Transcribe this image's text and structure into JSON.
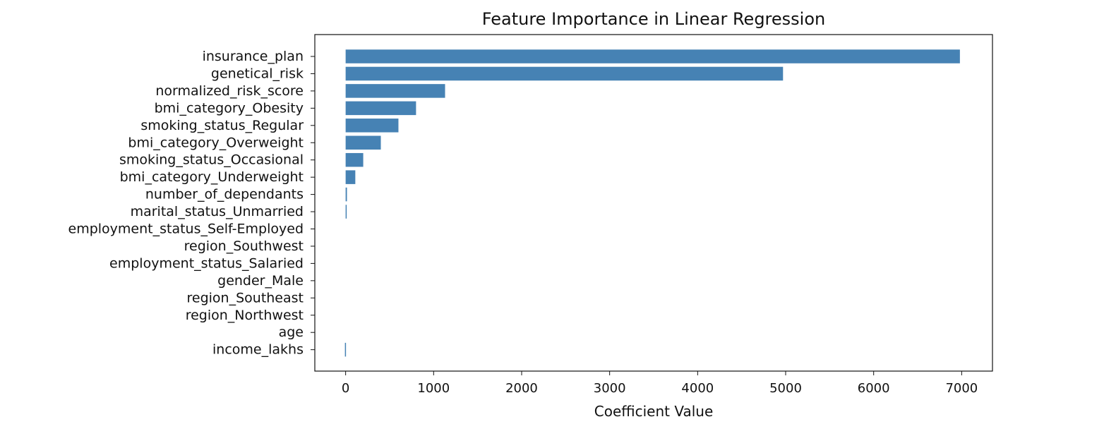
{
  "chart_data": {
    "type": "bar",
    "orientation": "horizontal",
    "title": "Feature Importance in Linear Regression",
    "xlabel": "Coefficient Value",
    "ylabel": "",
    "xlim": [
      -350,
      7350
    ],
    "xticks": [
      0,
      1000,
      2000,
      3000,
      4000,
      5000,
      6000,
      7000
    ],
    "bar_color": "#4682B4",
    "categories": [
      "insurance_plan",
      "genetical_risk",
      "normalized_risk_score",
      "bmi_category_Obesity",
      "smoking_status_Regular",
      "bmi_category_Overweight",
      "smoking_status_Occasional",
      "bmi_category_Underweight",
      "number_of_dependants",
      "marital_status_Unmarried",
      "employment_status_Self-Employed",
      "region_Southwest",
      "employment_status_Salaried",
      "gender_Male",
      "region_Southeast",
      "region_Northwest",
      "age",
      "income_lakhs"
    ],
    "values": [
      6980,
      4970,
      1130,
      800,
      600,
      400,
      200,
      110,
      15,
      12,
      0,
      0,
      0,
      0,
      0,
      0,
      0,
      -8
    ]
  }
}
